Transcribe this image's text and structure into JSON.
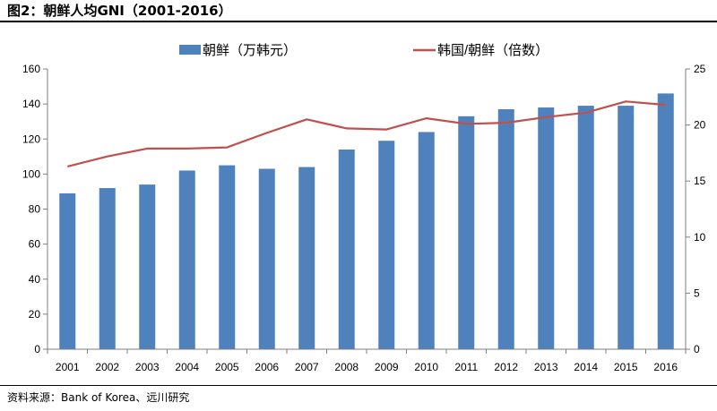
{
  "figure": {
    "title": "图2：朝鲜人均GNI（2001-2016）",
    "source": "资料来源：Bank of Korea、远川研究"
  },
  "chart_data": {
    "type": "bar",
    "categories": [
      "2001",
      "2002",
      "2003",
      "2004",
      "2005",
      "2006",
      "2007",
      "2008",
      "2009",
      "2010",
      "2011",
      "2012",
      "2013",
      "2014",
      "2015",
      "2016"
    ],
    "series": [
      {
        "name": "朝鲜（万韩元）",
        "type": "bar",
        "axis": "left",
        "color": "#4F81BD",
        "values": [
          89,
          92,
          94,
          102,
          105,
          103,
          104,
          114,
          119,
          124,
          133,
          137,
          138,
          139,
          139,
          146
        ]
      },
      {
        "name": "韩国/朝鲜（倍数）",
        "type": "line",
        "axis": "right",
        "color": "#C0504D",
        "values": [
          16.3,
          17.2,
          17.9,
          17.9,
          18.0,
          19.3,
          20.5,
          19.7,
          19.6,
          20.6,
          20.1,
          20.2,
          20.7,
          21.1,
          22.1,
          21.8
        ]
      }
    ],
    "y_left": {
      "min": 0,
      "max": 160,
      "ticks": [
        "0",
        "20",
        "40",
        "60",
        "80",
        "100",
        "120",
        "140",
        "160"
      ]
    },
    "y_right": {
      "min": 0,
      "max": 25,
      "ticks": [
        "0",
        "5",
        "10",
        "15",
        "20",
        "25"
      ]
    },
    "legend": {
      "placement": "top-center"
    },
    "grid": false
  }
}
